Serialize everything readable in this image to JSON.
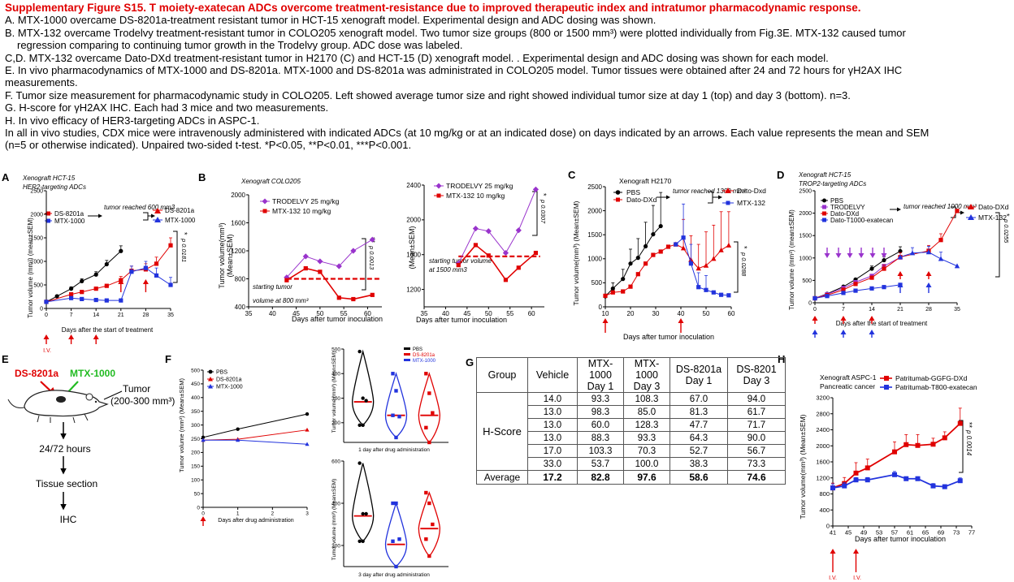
{
  "caption": {
    "title": "Supplementary Figure S15. T moiety-exatecan ADCs overcome treatment-resistance due to improved therapeutic index and intratumor pharmacodynamic response.",
    "lines": [
      "A.  MTX-1000 overcame DS-8201a-treatment resistant tumor in HCT-15 xenograft model. Experimental design and ADC dosing was shown.",
      "B.  MTX-132 overcame Trodelvy treatment-resistant tumor in COLO205 xenograft model. Two tumor size groups (800 or 1500 mm³) were plotted individually from Fig.3E.  MTX-132 caused tumor",
      "regression comparing to continuing tumor growth in the Trodelvy group. ADC dose was labeled.",
      "C,D. MTX-132 overcame Dato-DXd treatment-resistant tumor in H2170 (C) and HCT-15 (D) xenograft model. . Experimental design and ADC dosing was shown for each model.",
      "E. In vivo pharmacodynamics of MTX-1000 and DS-8201a. MTX-1000 and DS-8201a was administrated in COLO205 model. Tumor tissues were obtained after 24 and 72 hours for γH2AX IHC",
      "measurements.",
      "F. Tumor size measurement for pharmacodynamic study in COLO205. Left showed average tumor size and right showed individual tumor size at day 1 (top) and day 3 (bottom). n=3.",
      "G. H-score for γH2AX IHC. Each had 3 mice and two measurements.",
      "H.  In vivo efficacy of HER3-targeting ADCs in ASPC-1.",
      "In all in vivo studies, CDX mice were intravenously administered with indicated ADCs (at 10 mg/kg or at an indicated dose) on days indicated by an arrows. Each value represents the mean and SEM",
      "(n=5 or otherwise indicated). Unpaired two-sided t-test. *P<0.05, **P<0.01, ***P<0.001."
    ]
  },
  "panel_letters": [
    "A",
    "B",
    "C",
    "D",
    "E",
    "F",
    "G",
    "H"
  ],
  "panelA": {
    "subtitle1": "Xenograft HCT-15",
    "subtitle2": "HER2-targeting ADCs",
    "ylabel": "Tumor volume (mm³) (mean±SEM)",
    "xlabel": "Days after the start of treatment",
    "legend": [
      "DS-8201a",
      "MTX-1000"
    ],
    "note": "tumor reached 600 mm3",
    "legend_right": [
      "DS-8201a",
      "MTX-1000"
    ],
    "pvalue": "p 0.0181",
    "star": "*",
    "iv_label": "I.V.",
    "yticks": [
      "0",
      "500",
      "1000",
      "1500",
      "2000",
      "2500"
    ],
    "xticks": [
      "0",
      "7",
      "14",
      "21",
      "28",
      "35"
    ]
  },
  "panelB": {
    "subtitle": "Xenograft COLO205",
    "ylabel1": "Tumor volume(mm³)",
    "ylabel2": "(Mean±SEM)",
    "xlabel": "Days after tumor inoculation",
    "legend": [
      "TRODELVY 25 mg/kg",
      "MTX-132 10 mg/kg"
    ],
    "note1": [
      "starting tumor",
      "volume at 800 mm³"
    ],
    "note2": [
      "starting tumor volume",
      "at 1500 mm3"
    ],
    "p1": "p 0.0013",
    "p2": "p 0.0307",
    "stars1": "**",
    "stars2": "*",
    "yticks1": [
      "400",
      "800",
      "1200",
      "1600",
      "2000"
    ],
    "yticks2": [
      "1200",
      "1600",
      "2000",
      "2400"
    ],
    "xticks": [
      "35",
      "40",
      "45",
      "50",
      "55",
      "60"
    ]
  },
  "panelC": {
    "subtitle": "Xenograft H2170",
    "ylabel": "Tumor volume(mm³) (Mean±SEM)",
    "xlabel": "Days after tumor inoculation",
    "legend": [
      "PBS",
      "Dato-DXd"
    ],
    "note": "tumor reached 1300 mm³",
    "legend_right": [
      "Dato-Dxd",
      "MTX-132"
    ],
    "pvalue": "p 0.0288",
    "star": "*",
    "yticks": [
      "0",
      "500",
      "1000",
      "1500",
      "2000",
      "2500"
    ],
    "xticks": [
      "10",
      "20",
      "30",
      "40",
      "50",
      "60"
    ]
  },
  "panelD": {
    "subtitle1": "Xenograft HCT-15",
    "subtitle2": "TROP2-targeting ADCs",
    "ylabel": "Tumor volume (mm³) (mean±SEM)",
    "xlabel": "Days after the start of treatment",
    "legend": [
      "PBS",
      "TRODELVY",
      "Dato-DXd",
      "Dato-T1000-exatecan"
    ],
    "note": "tumor reached 1000 mm³",
    "legend_right": [
      "Dato-DXd",
      "MTX-132"
    ],
    "pvalue": "p 0.0255",
    "star": "*",
    "yticks": [
      "0",
      "500",
      "1000",
      "1500",
      "2000",
      "2500"
    ],
    "xticks": [
      "0",
      "7",
      "14",
      "21",
      "28",
      "35"
    ]
  },
  "panelE": {
    "drug1": "DS-8201a",
    "drug2": "MTX-1000",
    "tumor": "Tumor",
    "tumor_size": "(200-300 mm³)",
    "step1": "24/72 hours",
    "step2": "Tissue section",
    "step3": "IHC"
  },
  "panelF": {
    "ylabel": "Tumor volume (mm³) (Mean±SEM)",
    "xlabel": "Days after drug administration",
    "legend": [
      "PBS",
      "DS-8201a",
      "MTX-1000"
    ],
    "yticks": [
      "0",
      "50",
      "100",
      "150",
      "200",
      "250",
      "300",
      "350",
      "400",
      "450",
      "500"
    ],
    "xticks": [
      "0",
      "1",
      "2",
      "3"
    ],
    "violin_ylabel": "Tumor volume (mm³) (Mean±SEM)",
    "violin_legend": [
      "PBS",
      "DS-8201a",
      "MTX-1000"
    ],
    "violin1_xlabel": "1 day after drug administration",
    "violin2_xlabel": "3 day after drug administration",
    "violin1_yticks": [
      "200",
      "300",
      "400",
      "500"
    ],
    "violin2_yticks": [
      "200",
      "400",
      "600"
    ]
  },
  "panelG": {
    "headers": [
      "Group",
      "Vehicle",
      "MTX-1000 Day 1",
      "MTX-1000 Day 3",
      "DS-8201a Day 1",
      "DS-8201 Day 3"
    ],
    "group_label": "H-Score",
    "rows": [
      [
        "14.0",
        "93.3",
        "108.3",
        "67.0",
        "94.0"
      ],
      [
        "13.0",
        "98.3",
        "85.0",
        "81.3",
        "61.7"
      ],
      [
        "13.0",
        "60.0",
        "128.3",
        "47.7",
        "71.7"
      ],
      [
        "13.0",
        "88.3",
        "93.3",
        "64.3",
        "90.0"
      ],
      [
        "17.0",
        "103.3",
        "70.3",
        "52.7",
        "56.7"
      ],
      [
        "33.0",
        "53.7",
        "100.0",
        "38.3",
        "73.3"
      ]
    ],
    "average_label": "Average",
    "average": [
      "17.2",
      "82.8",
      "97.6",
      "58.6",
      "74.6"
    ]
  },
  "panelH": {
    "subtitle1": "Xenograft ASPC-1",
    "subtitle2": "Pancreatic cancer",
    "ylabel": "Tumor volume(mm³) (Mean±SEM)",
    "xlabel": "Days after tumor inoculation",
    "legend": [
      "Patritumab-GGFG-DXd",
      "Patritumab-T800-exatecan"
    ],
    "pvalue": "p 0.0014",
    "stars": "**",
    "iv_label": "I.V.",
    "yticks": [
      "0",
      "400",
      "800",
      "1200",
      "1600",
      "2000",
      "2400",
      "2800",
      "3200"
    ],
    "xticks": [
      "41",
      "45",
      "49",
      "53",
      "57",
      "61",
      "65",
      "69",
      "73",
      "77"
    ]
  },
  "chart_data": [
    {
      "panel": "A",
      "type": "line",
      "title": "",
      "xlabel": "Days after the start of treatment",
      "ylabel": "Tumor volume (mm³) (mean±SEM)",
      "xlim": [
        0,
        35
      ],
      "ylim": [
        0,
        2500
      ],
      "series": [
        {
          "name": "",
          "x": [
            0,
            3,
            7,
            10,
            14,
            17,
            21
          ],
          "y": [
            140,
            260,
            420,
            580,
            720,
            940,
            1220
          ]
        },
        {
          "name": "DS-8201a",
          "x": [
            0,
            7,
            10,
            14,
            17,
            21,
            24,
            28,
            31,
            35
          ],
          "y": [
            140,
            300,
            350,
            420,
            480,
            600,
            800,
            830,
            950,
            1340
          ]
        },
        {
          "name": "MTX-1000",
          "x": [
            0,
            7,
            10,
            14,
            17,
            21,
            24,
            28,
            31,
            35
          ],
          "y": [
            140,
            220,
            200,
            180,
            170,
            170,
            780,
            860,
            700,
            500
          ]
        }
      ]
    },
    {
      "panel": "B-800",
      "type": "line",
      "title": "",
      "xlabel": "Days after tumor inoculation",
      "ylabel": "Tumor volume(mm³)",
      "xlim": [
        35,
        63
      ],
      "ylim": [
        400,
        2000
      ],
      "series": [
        {
          "name": "TRODELVY 25 mg/kg",
          "x": [
            43,
            47,
            50,
            54,
            57,
            61
          ],
          "y": [
            820,
            1120,
            1050,
            980,
            1200,
            1360
          ]
        },
        {
          "name": "MTX-132 10 mg/kg",
          "x": [
            43,
            47,
            50,
            54,
            57,
            61
          ],
          "y": [
            780,
            950,
            900,
            530,
            510,
            570
          ]
        }
      ]
    },
    {
      "panel": "B-1500",
      "type": "line",
      "title": "",
      "xlabel": "Days after tumor inoculation",
      "ylabel": "",
      "xlim": [
        35,
        63
      ],
      "ylim": [
        1000,
        2400
      ],
      "series": [
        {
          "name": "TRODELVY 25 mg/kg",
          "x": [
            43,
            47,
            50,
            54,
            57,
            61
          ],
          "y": [
            1500,
            1900,
            1870,
            1620,
            1880,
            2350
          ]
        },
        {
          "name": "MTX-132 10 mg/kg",
          "x": [
            43,
            47,
            50,
            54,
            57,
            61
          ],
          "y": [
            1480,
            1710,
            1590,
            1310,
            1450,
            1620
          ]
        }
      ]
    },
    {
      "panel": "C",
      "type": "line",
      "title": "",
      "xlabel": "Days after tumor inoculation",
      "ylabel": "Tumor volume(mm³) (Mean±SEM)",
      "xlim": [
        10,
        60
      ],
      "ylim": [
        0,
        2500
      ],
      "series": [
        {
          "name": "PBS",
          "x": [
            10,
            13,
            17,
            20,
            23,
            26,
            29,
            32
          ],
          "y": [
            220,
            380,
            580,
            900,
            1020,
            1260,
            1510,
            1680
          ]
        },
        {
          "name": "Dato-DXd",
          "x": [
            10,
            13,
            17,
            20,
            23,
            26,
            29,
            32,
            35,
            38
          ],
          "y": [
            230,
            300,
            320,
            420,
            680,
            900,
            1080,
            1150,
            1250,
            1300
          ]
        },
        {
          "name": "Dato-Dxd",
          "x": [
            38,
            41,
            44,
            47,
            50,
            53,
            56,
            59
          ],
          "y": [
            1300,
            1220,
            980,
            800,
            860,
            1000,
            1180,
            1280
          ]
        },
        {
          "name": "MTX-132",
          "x": [
            38,
            41,
            44,
            47,
            50,
            53,
            56,
            59
          ],
          "y": [
            1300,
            1440,
            900,
            410,
            350,
            300,
            250,
            240
          ]
        }
      ]
    },
    {
      "panel": "D",
      "type": "line",
      "title": "",
      "xlabel": "Days after the start of treatment",
      "ylabel": "Tumor volume (mm³) (mean±SEM)",
      "xlim": [
        0,
        35
      ],
      "ylim": [
        0,
        2500
      ],
      "series": [
        {
          "name": "PBS",
          "x": [
            0,
            3,
            7,
            10,
            14,
            17,
            21
          ],
          "y": [
            100,
            200,
            360,
            520,
            760,
            950,
            1150
          ]
        },
        {
          "name": "TRODELVY",
          "x": [
            0,
            3,
            7,
            10,
            14,
            17,
            21
          ],
          "y": [
            100,
            190,
            330,
            460,
            600,
            820,
            1010
          ]
        },
        {
          "name": "Dato-DXd",
          "x": [
            0,
            3,
            7,
            10,
            14,
            17,
            21,
            28,
            31,
            35
          ],
          "y": [
            100,
            170,
            290,
            420,
            560,
            760,
            1020,
            1160,
            1400,
            2050
          ]
        },
        {
          "name": "Dato-T1000-exatecan",
          "x": [
            0,
            3,
            7,
            10,
            14,
            17,
            21
          ],
          "y": [
            100,
            150,
            220,
            270,
            320,
            350,
            400
          ]
        },
        {
          "name": "MTX-132",
          "x": [
            21,
            24,
            28,
            31,
            35
          ],
          "y": [
            1020,
            1110,
            1130,
            980,
            820
          ]
        }
      ]
    },
    {
      "panel": "F",
      "type": "line",
      "title": "",
      "xlabel": "Days after drug administration",
      "ylabel": "Tumor volume (mm³) (Mean±SEM)",
      "xlim": [
        0,
        3
      ],
      "ylim": [
        0,
        500
      ],
      "series": [
        {
          "name": "PBS",
          "x": [
            0,
            1,
            3
          ],
          "y": [
            255,
            285,
            340
          ]
        },
        {
          "name": "DS-8201a",
          "x": [
            0,
            1,
            3
          ],
          "y": [
            245,
            248,
            282
          ]
        },
        {
          "name": "MTX-1000",
          "x": [
            0,
            1,
            3
          ],
          "y": [
            245,
            245,
            230
          ]
        }
      ]
    },
    {
      "panel": "F-day1",
      "type": "scatter",
      "title": "",
      "xlabel": "1 day after drug administration",
      "ylabel": "Tumor volume (mm³) (Mean±SEM)",
      "ylim": [
        120,
        500
      ],
      "series": [
        {
          "name": "PBS",
          "y": [
            490,
            300,
            290,
            190,
            190
          ],
          "median": 285
        },
        {
          "name": "DS-8201a",
          "y": [
            400,
            330,
            225,
            230,
            140
          ],
          "median": 230
        },
        {
          "name": "MTX-1000",
          "y": [
            400,
            320,
            240,
            180,
            120
          ],
          "median": 230
        }
      ]
    },
    {
      "panel": "F-day3",
      "type": "scatter",
      "title": "",
      "xlabel": "3 day after drug administration",
      "ylabel": "Tumor volume (mm³) (Mean±SEM)",
      "ylim": [
        100,
        600
      ],
      "series": [
        {
          "name": "PBS",
          "y": [
            590,
            350,
            350,
            220,
            220
          ],
          "median": 340
        },
        {
          "name": "DS-8201a",
          "y": [
            400,
            400,
            230,
            220,
            100
          ],
          "median": 205
        },
        {
          "name": "MTX-1000",
          "y": [
            450,
            400,
            300,
            230,
            150
          ],
          "median": 280
        }
      ]
    },
    {
      "panel": "H",
      "type": "line",
      "title": "",
      "xlabel": "Days after tumor inoculation",
      "ylabel": "Tumor volume(mm³) (Mean±SEM)",
      "xlim": [
        41,
        77
      ],
      "ylim": [
        0,
        3200
      ],
      "series": [
        {
          "name": "Patritumab-GGFG-DXd",
          "x": [
            41,
            44,
            47,
            50,
            57,
            60,
            63,
            67,
            70,
            74
          ],
          "y": [
            950,
            1060,
            1320,
            1450,
            1850,
            2030,
            2010,
            2040,
            2200,
            2560
          ]
        },
        {
          "name": "Patritumab-T800-exatecan",
          "x": [
            41,
            44,
            47,
            50,
            57,
            60,
            63,
            67,
            70,
            74
          ],
          "y": [
            950,
            1000,
            1150,
            1150,
            1280,
            1180,
            1180,
            1000,
            980,
            1130
          ]
        }
      ]
    }
  ]
}
